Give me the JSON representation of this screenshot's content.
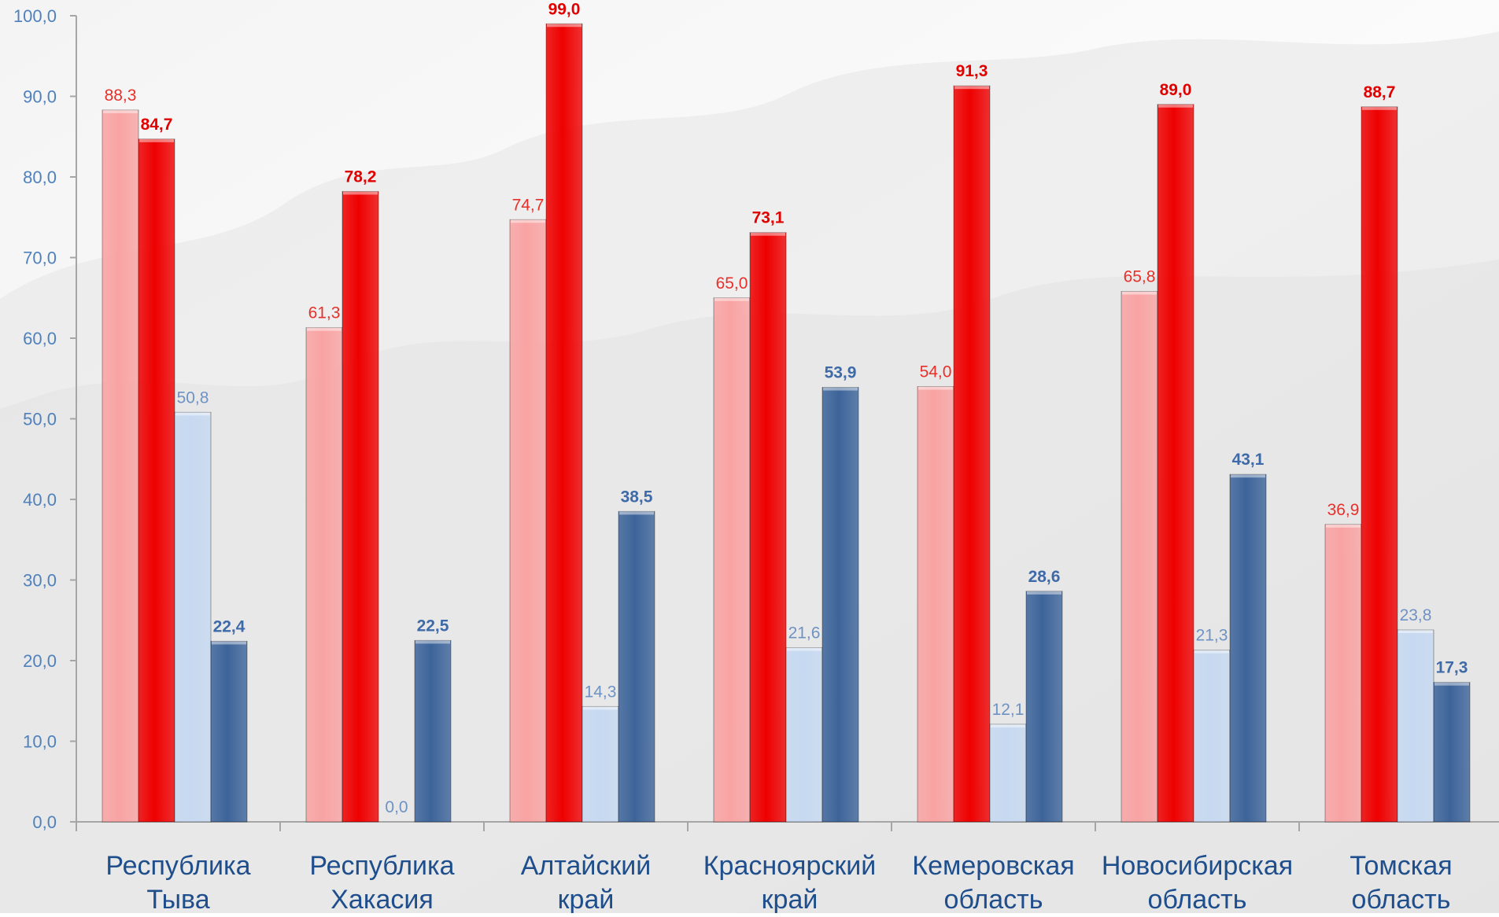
{
  "chart_data": {
    "type": "bar",
    "categories": [
      [
        "Республика",
        "Тыва"
      ],
      [
        "Республика",
        "Хакасия"
      ],
      [
        "Алтайский",
        "край"
      ],
      [
        "Красноярский",
        "край"
      ],
      [
        "Кемеровская",
        "область"
      ],
      [
        "Новосибирская",
        "область"
      ],
      [
        "Томская",
        "область"
      ]
    ],
    "series": [
      {
        "values": [
          88.3,
          61.3,
          74.7,
          65.0,
          54.0,
          65.8,
          36.9
        ],
        "color": "#f9a3a3",
        "label_color": "#e8302b",
        "bold": false
      },
      {
        "values": [
          84.7,
          78.2,
          99.0,
          73.1,
          91.3,
          89.0,
          88.7
        ],
        "color": "#ee0000",
        "label_color": "#e00000",
        "bold": true
      },
      {
        "values": [
          50.8,
          0.0,
          14.3,
          21.6,
          12.1,
          21.3,
          23.8
        ],
        "color": "#c6d9f1",
        "label_color": "#6f92c4",
        "bold": false
      },
      {
        "values": [
          22.4,
          22.5,
          38.5,
          53.9,
          28.6,
          43.1,
          17.3
        ],
        "color": "#3d649a",
        "label_color": "#3e6aa8",
        "bold": true
      }
    ],
    "value_labels": [
      [
        "88,3",
        "61,3",
        "74,7",
        "65,0",
        "54,0",
        "65,8",
        "36,9"
      ],
      [
        "84,7",
        "78,2",
        "99,0",
        "73,1",
        "91,3",
        "89,0",
        "88,7"
      ],
      [
        "50,8",
        "0,0",
        "14,3",
        "21,6",
        "12,1",
        "21,3",
        "23,8"
      ],
      [
        "22,4",
        "22,5",
        "38,5",
        "53,9",
        "28,6",
        "43,1",
        "17,3"
      ]
    ],
    "ylim": [
      0,
      100
    ],
    "yticks": [
      0,
      10,
      20,
      30,
      40,
      50,
      60,
      70,
      80,
      90,
      100
    ],
    "ytick_labels": [
      "0,0",
      "10,0",
      "20,0",
      "30,0",
      "40,0",
      "50,0",
      "60,0",
      "70,0",
      "80,0",
      "90,0",
      "100,0"
    ],
    "ytick_color": "#4f81bd",
    "category_label_color": "#1f4e8c",
    "grid": false,
    "title": "",
    "xlabel": "",
    "ylabel": ""
  }
}
